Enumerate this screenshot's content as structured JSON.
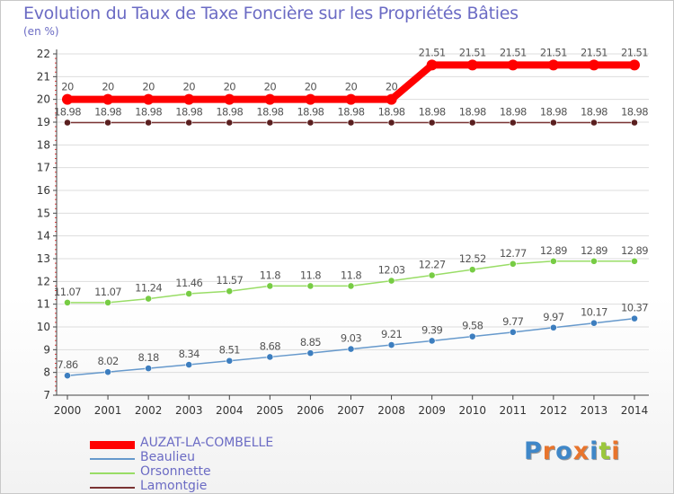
{
  "header": {
    "title": "Evolution du Taux de Taxe Foncière sur les Propriétés Bâties",
    "subtitle": "(en %)"
  },
  "logo": {
    "text": "Proxiti",
    "letters": [
      "P",
      "r",
      "o",
      "x",
      "i",
      "t",
      "i"
    ]
  },
  "colors": {
    "axis": "#444444",
    "grid": "#dddddd",
    "tick_label": "#333333",
    "value_label": "#555555",
    "logo_letters": [
      "#3f87c8",
      "#e8742c",
      "#3f87c8",
      "#e8742c",
      "#3f87c8",
      "#9bc73c",
      "#e8742c"
    ]
  },
  "chart_data": {
    "type": "line",
    "title": "Evolution du Taux de Taxe Foncière sur les Propriétés Bâties",
    "subtitle": "(en %)",
    "xlabel": "",
    "ylabel": "",
    "ylim": [
      7,
      22
    ],
    "yticks": [
      "7",
      "8",
      "9",
      "10",
      "11",
      "12",
      "13",
      "14",
      "15",
      "16",
      "17",
      "18",
      "19",
      "20",
      "21",
      "22"
    ],
    "grid": true,
    "legend_position": "bottom-left",
    "categories": [
      "2000",
      "2001",
      "2002",
      "2003",
      "2004",
      "2005",
      "2006",
      "2007",
      "2008",
      "2009",
      "2010",
      "2011",
      "2012",
      "2013",
      "2014"
    ],
    "series": [
      {
        "name": "AUZAT-LA-COMBELLE",
        "color": "#ff0000",
        "emphasis": true,
        "values": [
          20,
          20,
          20,
          20,
          20,
          20,
          20,
          20,
          20,
          21.51,
          21.51,
          21.51,
          21.51,
          21.51,
          21.51
        ],
        "labels": [
          "20",
          "20",
          "20",
          "20",
          "20",
          "20",
          "20",
          "20",
          "20",
          "21.51",
          "21.51",
          "21.51",
          "21.51",
          "21.51",
          "21.51"
        ]
      },
      {
        "name": "Beaulieu",
        "color": "#6699cc",
        "marker": "#3d7ebf",
        "emphasis": false,
        "values": [
          7.86,
          8.02,
          8.18,
          8.34,
          8.51,
          8.68,
          8.85,
          9.03,
          9.21,
          9.39,
          9.58,
          9.77,
          9.97,
          10.17,
          10.37
        ],
        "labels": [
          "7.86",
          "8.02",
          "8.18",
          "8.34",
          "8.51",
          "8.68",
          "8.85",
          "9.03",
          "9.21",
          "9.39",
          "9.58",
          "9.77",
          "9.97",
          "10.17",
          "10.37"
        ]
      },
      {
        "name": "Orsonnette",
        "color": "#99dd66",
        "marker": "#77cc44",
        "emphasis": false,
        "values": [
          11.07,
          11.07,
          11.24,
          11.46,
          11.57,
          11.8,
          11.8,
          11.8,
          12.03,
          12.27,
          12.52,
          12.77,
          12.89,
          12.89,
          12.89
        ],
        "labels": [
          "11.07",
          "11.07",
          "11.24",
          "11.46",
          "11.57",
          "11.8",
          "11.8",
          "11.8",
          "12.03",
          "12.27",
          "12.52",
          "12.77",
          "12.89",
          "12.89",
          "12.89"
        ]
      },
      {
        "name": "Lamontgie",
        "color": "#7a3333",
        "marker": "#5a1f1f",
        "emphasis": false,
        "values": [
          18.98,
          18.98,
          18.98,
          18.98,
          18.98,
          18.98,
          18.98,
          18.98,
          18.98,
          18.98,
          18.98,
          18.98,
          18.98,
          18.98,
          18.98
        ],
        "labels": [
          "18.98",
          "18.98",
          "18.98",
          "18.98",
          "18.98",
          "18.98",
          "18.98",
          "18.98",
          "18.98",
          "18.98",
          "18.98",
          "18.98",
          "18.98",
          "18.98",
          "18.98"
        ]
      }
    ]
  }
}
